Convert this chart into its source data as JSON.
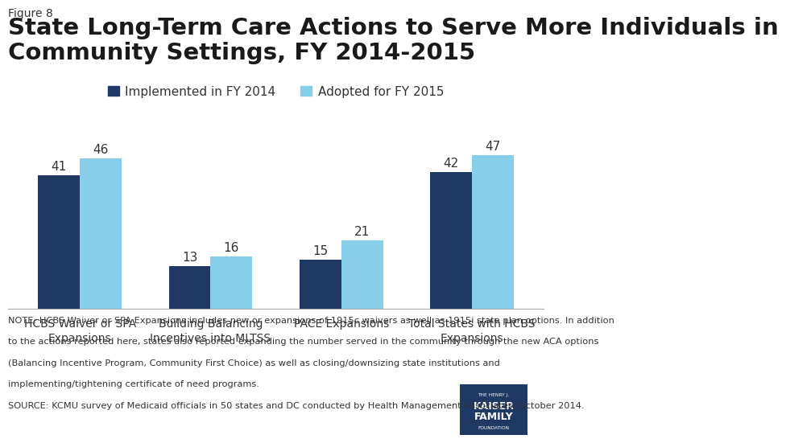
{
  "figure_label": "Figure 8",
  "title": "State Long-Term Care Actions to Serve More Individuals in\nCommunity Settings, FY 2014-2015",
  "categories": [
    "HCBS Waiver or SPA\nExpansions",
    "Building Balancing\nIncentives into MLTSS",
    "PACE Expansions",
    "Total States with HCBS\nExpansions"
  ],
  "series": [
    {
      "label": "Implemented in FY 2014",
      "values": [
        41,
        13,
        15,
        42
      ],
      "color": "#1f3864"
    },
    {
      "label": "Adopted for FY 2015",
      "values": [
        46,
        16,
        21,
        47
      ],
      "color": "#87ceeb"
    }
  ],
  "ylim": [
    0,
    55
  ],
  "bar_width": 0.32,
  "background_color": "#ffffff",
  "note_line1": "NOTE: HCBS Waiver or SPA Expansions includes new or expansions of 1915c waivers as well as 1915i state plan options. In addition",
  "note_line2": "to the actions reported here, states also reported expanding the number served in the community through the new ACA options",
  "note_line3": "(Balancing Incentive Program, Community First Choice) as well as closing/downsizing state institutions and",
  "note_line4": "implementing/tightening certificate of need programs.",
  "note_line5": "SOURCE: KCMU survey of Medicaid officials in 50 states and DC conducted by Health Management Associates, October 2014.",
  "legend_color_1": "#1f3864",
  "legend_color_2": "#87ceeb",
  "title_fontsize": 21,
  "figure_label_fontsize": 10,
  "axis_label_fontsize": 10,
  "value_fontsize": 11,
  "note_fontsize": 8.2,
  "legend_fontsize": 11
}
